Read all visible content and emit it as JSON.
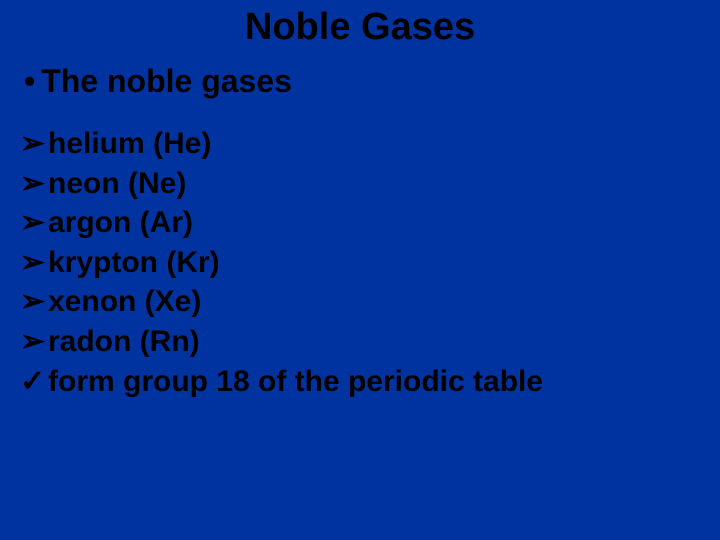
{
  "slide": {
    "background_color": "#0033a0",
    "text_color": "#000000",
    "title": "Noble Gases",
    "title_fontsize": 38,
    "main_bullet": {
      "marker": "•",
      "text": "The noble gases",
      "fontsize": 32
    },
    "list_fontsize": 30,
    "items": [
      {
        "marker": "➢",
        "text": "helium (He)"
      },
      {
        "marker": "➢",
        "text": "neon (Ne)"
      },
      {
        "marker": "➢",
        "text": "argon (Ar)"
      },
      {
        "marker": "➢",
        "text": "krypton (Kr)"
      },
      {
        "marker": "➢",
        "text": "xenon (Xe)"
      },
      {
        "marker": "➢",
        "text": "radon (Rn)"
      },
      {
        "marker": "✓",
        "text": "form group 18 of the periodic table"
      }
    ]
  }
}
